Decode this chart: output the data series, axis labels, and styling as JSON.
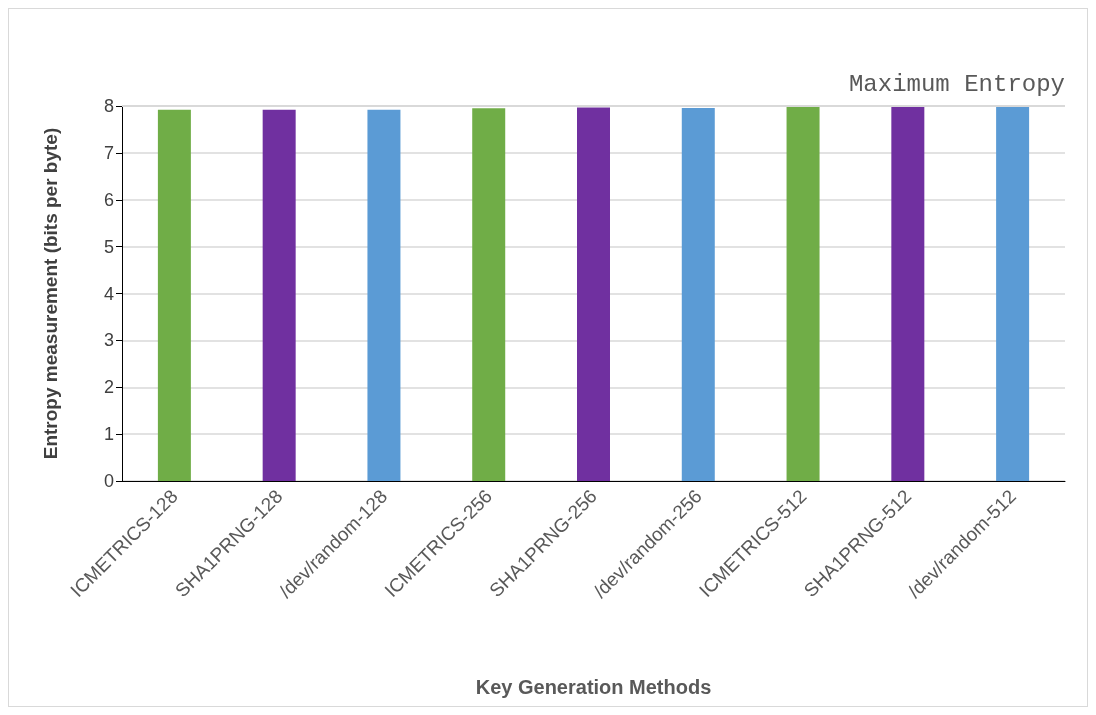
{
  "chart_data": {
    "type": "bar",
    "xlabel": "Key Generation Methods",
    "ylabel": "Entropy measurement (bits per byte)",
    "categories": [
      "ICMETRICS-128",
      "SHA1PRNG-128",
      "/dev/random-128",
      "ICMETRICS-256",
      "SHA1PRNG-256",
      "/dev/random-256",
      "ICMETRICS-512",
      "SHA1PRNG-512",
      "/dev/random-512"
    ],
    "values": [
      7.92,
      7.92,
      7.92,
      7.95,
      7.97,
      7.96,
      7.99,
      7.99,
      7.99
    ],
    "colors": [
      "#70ad47",
      "#7030a0",
      "#5b9bd5",
      "#70ad47",
      "#7030a0",
      "#5b9bd5",
      "#70ad47",
      "#7030a0",
      "#5b9bd5"
    ],
    "ylim": [
      0,
      8
    ],
    "yticks": [
      0,
      1,
      2,
      3,
      4,
      5,
      6,
      7,
      8
    ],
    "grid": "y",
    "ref_lines": [
      {
        "axis": "y",
        "value": 8,
        "label": "Maximum Entropy",
        "color": "#d9d9d9"
      }
    ]
  }
}
